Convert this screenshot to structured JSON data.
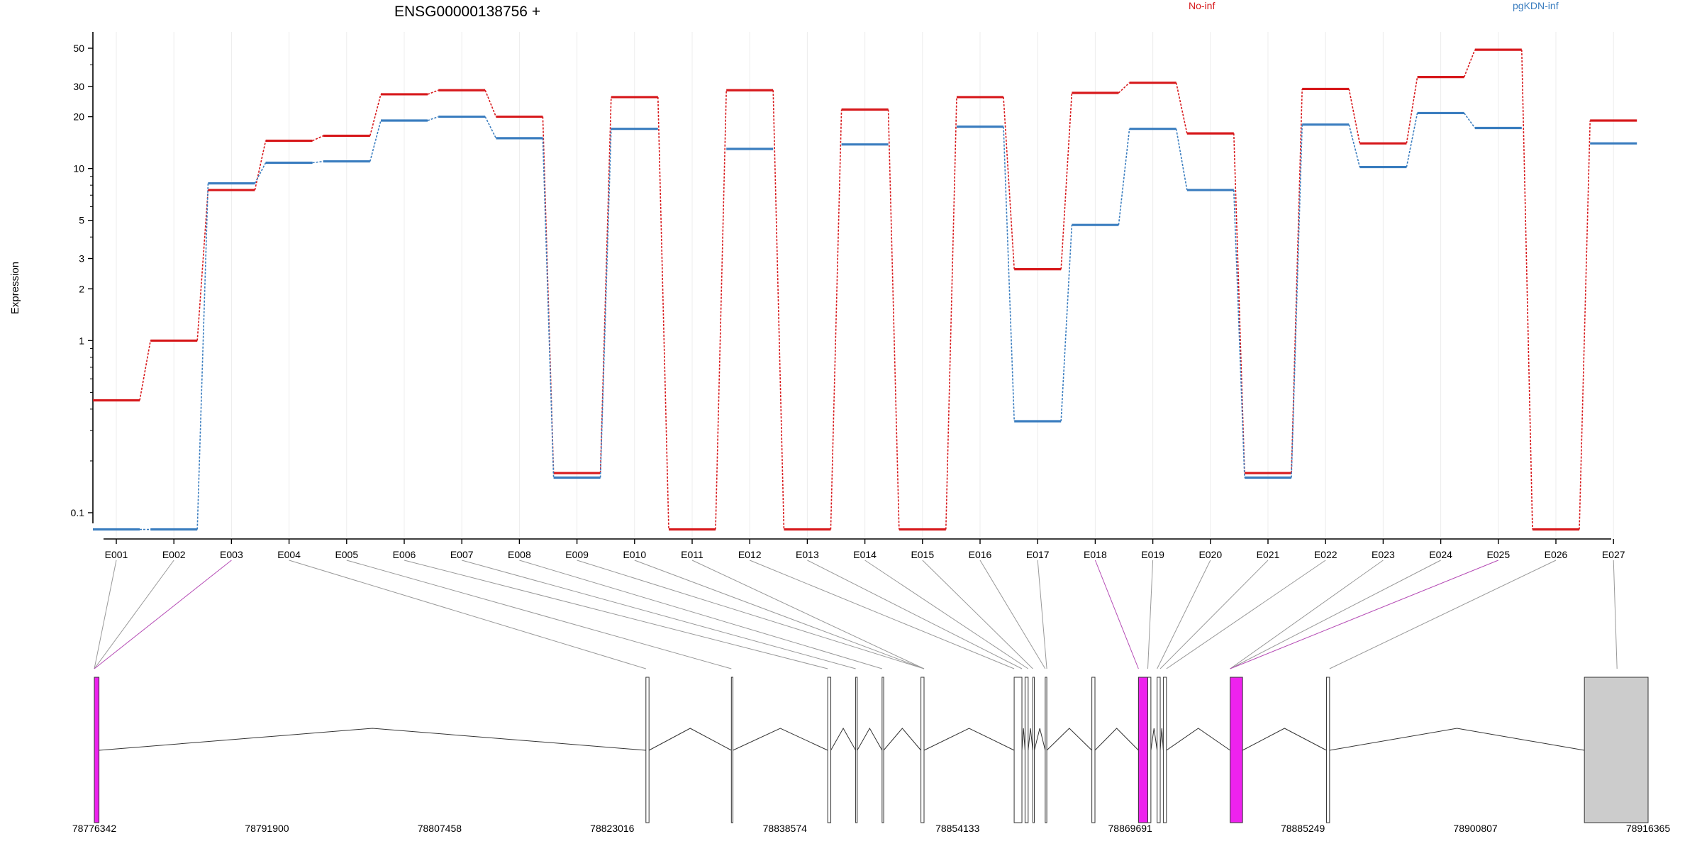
{
  "title": "ENSG00000138756 +",
  "ylabel": "Expression",
  "legend": [
    {
      "label": "No-inf",
      "color": "#d7191c"
    },
    {
      "label": "pgKDN-inf",
      "color": "#3a7dbf"
    }
  ],
  "chart_data": {
    "type": "line",
    "scale": "log",
    "ylim": [
      0.08,
      60
    ],
    "yticks": [
      "0.1",
      "1",
      "2",
      "3",
      "5",
      "10",
      "20",
      "30",
      "50"
    ],
    "categories": [
      "E001",
      "E002",
      "E003",
      "E004",
      "E005",
      "E006",
      "E007",
      "E008",
      "E009",
      "E010",
      "E011",
      "E012",
      "E013",
      "E014",
      "E015",
      "E016",
      "E017",
      "E018",
      "E019",
      "E020",
      "E021",
      "E022",
      "E023",
      "E024",
      "E025",
      "E026",
      "E027"
    ],
    "series": [
      {
        "name": "No-inf",
        "color": "#d7191c",
        "values": [
          0.45,
          1.0,
          7.5,
          14.5,
          15.5,
          27.0,
          28.5,
          20.0,
          0.17,
          26.0,
          0.08,
          28.5,
          0.08,
          22.0,
          0.08,
          26.0,
          2.6,
          27.5,
          31.5,
          16.0,
          0.17,
          29.0,
          14.0,
          34.0,
          49.0,
          0.08,
          19.0
        ]
      },
      {
        "name": "pgKDN-inf",
        "color": "#3a7dbf",
        "values": [
          0.08,
          0.08,
          8.2,
          10.8,
          11.0,
          19.0,
          20.0,
          15.0,
          0.16,
          17.0,
          null,
          13.0,
          null,
          13.8,
          null,
          17.5,
          0.34,
          4.7,
          17.0,
          7.5,
          0.16,
          18.0,
          10.2,
          21.0,
          17.2,
          null,
          14.0
        ]
      }
    ]
  },
  "gene_model": {
    "genomic_ticks": [
      "78776342",
      "78791900",
      "78807458",
      "78823016",
      "78838574",
      "78854133",
      "78869691",
      "78885249",
      "78900807",
      "78916365"
    ],
    "exon_fill": "#ffffff",
    "highlight_fill": "#ee22ee",
    "utr_fill": "#cccccc"
  }
}
